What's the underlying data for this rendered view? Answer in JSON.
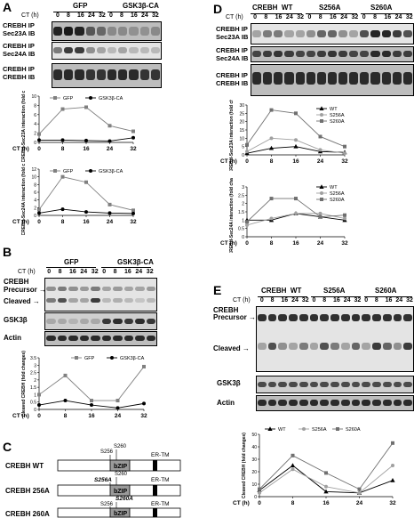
{
  "panels": {
    "A": {
      "letter": "A",
      "groups": [
        "GFP",
        "GSK3β-CA"
      ],
      "ct_label": "CT (h)",
      "ct_values": [
        "0",
        "8",
        "16",
        "24",
        "32",
        "0",
        "8",
        "16",
        "24",
        "32"
      ],
      "blots": [
        "CREBH IP\nSec23A IB",
        "CREBH IP\nSec24A IB",
        "CREBH IP\nCREBH IB"
      ]
    },
    "B": {
      "letter": "B",
      "groups": [
        "GFP",
        "GSK3β-CA"
      ],
      "ct_label": "CT (h)",
      "ct_values": [
        "0",
        "8",
        "16",
        "24",
        "32",
        "0",
        "8",
        "16",
        "24",
        "32"
      ],
      "labels": [
        "CREBH",
        "Precursor",
        "Cleaved",
        "GSK3β",
        "Actin"
      ]
    },
    "C": {
      "letter": "C",
      "constructs": [
        "CREBH  WT",
        "CREBH  256A",
        "CREBH  260A"
      ],
      "sites_wt": [
        "S256",
        "S260"
      ],
      "sites_256": [
        "S256A",
        "S260"
      ],
      "sites_260": [
        "S256",
        "S260A"
      ],
      "domain": "bZIP",
      "tm": "ER-TM"
    },
    "D": {
      "letter": "D",
      "groups": [
        "CREBH  WT",
        "S256A",
        "S260A"
      ],
      "ct_label": "CT (h)",
      "ct_values": [
        "0",
        "8",
        "16",
        "24",
        "32",
        "0",
        "8",
        "16",
        "24",
        "32",
        "0",
        "8",
        "16",
        "24",
        "32"
      ],
      "blots": [
        "CREBH IP\nSec23A IB",
        "CREBH IP\nSec24A IB",
        "CREBH IP\nCREBH IB"
      ]
    },
    "E": {
      "letter": "E",
      "groups": [
        "CREBH  WT",
        "S256A",
        "S260A"
      ],
      "ct_label": "CT (h)",
      "ct_values": [
        "0",
        "8",
        "16",
        "24",
        "32",
        "0",
        "8",
        "16",
        "24",
        "32",
        "0",
        "8",
        "16",
        "24",
        "32"
      ],
      "labels": [
        "CREBH",
        "Precursor",
        "Cleaved",
        "GSK3β",
        "Actin"
      ]
    }
  },
  "chart_data": [
    {
      "id": "A1",
      "type": "line",
      "x": [
        0,
        8,
        16,
        24,
        32
      ],
      "xticks": [
        "0",
        "8",
        "16",
        "24",
        "32"
      ],
      "xlabel": "CT (h)",
      "ylabel": "CREBH-Sec23A interaction (fold change)",
      "ylim": [
        0,
        10
      ],
      "yticks": [
        "0",
        "2",
        "4",
        "6",
        "8",
        "10"
      ],
      "series": [
        {
          "name": "GFP",
          "values": [
            1.8,
            7.2,
            7.6,
            3.6,
            2.4
          ],
          "color": "#808080",
          "marker": "square"
        },
        {
          "name": "GSK3β-CA",
          "values": [
            0.5,
            0.5,
            0.4,
            0.3,
            1.0
          ],
          "color": "#000000",
          "marker": "circle"
        }
      ]
    },
    {
      "id": "A2",
      "type": "line",
      "x": [
        0,
        8,
        16,
        24,
        32
      ],
      "xticks": [
        "0",
        "8",
        "16",
        "24",
        "32"
      ],
      "xlabel": "CT (h)",
      "ylabel": "CREBH-Sec24A interaction (fold change)",
      "ylim": [
        0,
        12
      ],
      "yticks": [
        "0",
        "2",
        "4",
        "6",
        "8",
        "10",
        "12"
      ],
      "series": [
        {
          "name": "GFP",
          "values": [
            1.5,
            10.0,
            8.6,
            2.8,
            1.3
          ],
          "color": "#808080",
          "marker": "square"
        },
        {
          "name": "GSK3β-CA",
          "values": [
            0.6,
            1.6,
            0.9,
            0.6,
            0.5
          ],
          "color": "#000000",
          "marker": "circle"
        }
      ]
    },
    {
      "id": "B",
      "type": "line",
      "x": [
        0,
        8,
        16,
        24,
        32
      ],
      "xticks": [
        "0",
        "8",
        "16",
        "24",
        "32"
      ],
      "xlabel": "CT (h)",
      "ylabel": "Cleaved CREBH (fold changes)",
      "ylim": [
        0,
        3.5
      ],
      "yticks": [
        "0",
        "0.5",
        "1",
        "1.5",
        "2",
        "2.5",
        "3",
        "3.5"
      ],
      "series": [
        {
          "name": "GFP",
          "values": [
            1.0,
            2.3,
            0.6,
            0.6,
            2.9
          ],
          "color": "#808080",
          "marker": "square"
        },
        {
          "name": "GSK3β-CA",
          "values": [
            0.3,
            0.6,
            0.3,
            0.1,
            0.4
          ],
          "color": "#000000",
          "marker": "circle"
        }
      ]
    },
    {
      "id": "D1",
      "type": "line",
      "x": [
        0,
        8,
        16,
        24,
        32
      ],
      "xticks": [
        "0",
        "8",
        "16",
        "24",
        "32"
      ],
      "xlabel": "CT (h)",
      "ylabel": "CREBH-Sec23A interaction (fold change)",
      "ylim": [
        0,
        30
      ],
      "yticks": [
        "0",
        "5",
        "10",
        "15",
        "20",
        "25",
        "30"
      ],
      "series": [
        {
          "name": "WT",
          "values": [
            1,
            4,
            5,
            2,
            1.5
          ],
          "color": "#000000",
          "marker": "triangle"
        },
        {
          "name": "S256A",
          "values": [
            2,
            10,
            9,
            3,
            1
          ],
          "color": "#a0a0a0",
          "marker": "circle"
        },
        {
          "name": "S260A",
          "values": [
            6,
            27,
            25,
            11,
            5
          ],
          "color": "#707070",
          "marker": "square"
        }
      ]
    },
    {
      "id": "D2",
      "type": "line",
      "x": [
        0,
        8,
        16,
        24,
        32
      ],
      "xticks": [
        "0",
        "8",
        "16",
        "24",
        "32"
      ],
      "xlabel": "CT (h)",
      "ylabel": "CREBH-Sec24A interaction (fold change)",
      "ylim": [
        0,
        3
      ],
      "yticks": [
        "0",
        "0.5",
        "1",
        "1.5",
        "2",
        "2.5",
        "3"
      ],
      "series": [
        {
          "name": "WT",
          "values": [
            1.0,
            1.0,
            1.4,
            1.2,
            1.0
          ],
          "color": "#000000",
          "marker": "triangle"
        },
        {
          "name": "S256A",
          "values": [
            0.7,
            1.1,
            1.4,
            1.4,
            1.1
          ],
          "color": "#a0a0a0",
          "marker": "circle"
        },
        {
          "name": "S260A",
          "values": [
            0.9,
            2.3,
            2.3,
            1.2,
            1.3
          ],
          "color": "#707070",
          "marker": "square"
        }
      ]
    },
    {
      "id": "E",
      "type": "line",
      "x": [
        0,
        8,
        16,
        24,
        32
      ],
      "xticks": [
        "0",
        "8",
        "16",
        "24",
        "32"
      ],
      "xlabel": "CT (h)",
      "ylabel": "Cleaved CREBH (fold changes)",
      "ylim": [
        0,
        50
      ],
      "yticks": [
        "0",
        "10",
        "20",
        "30",
        "40",
        "50"
      ],
      "series": [
        {
          "name": "WT",
          "values": [
            5,
            25,
            4,
            3,
            13
          ],
          "color": "#000000",
          "marker": "triangle"
        },
        {
          "name": "S256A",
          "values": [
            3,
            22,
            8,
            3,
            25
          ],
          "color": "#a0a0a0",
          "marker": "circle"
        },
        {
          "name": "S260A",
          "values": [
            6,
            33,
            19,
            6,
            43
          ],
          "color": "#707070",
          "marker": "square"
        }
      ]
    }
  ]
}
